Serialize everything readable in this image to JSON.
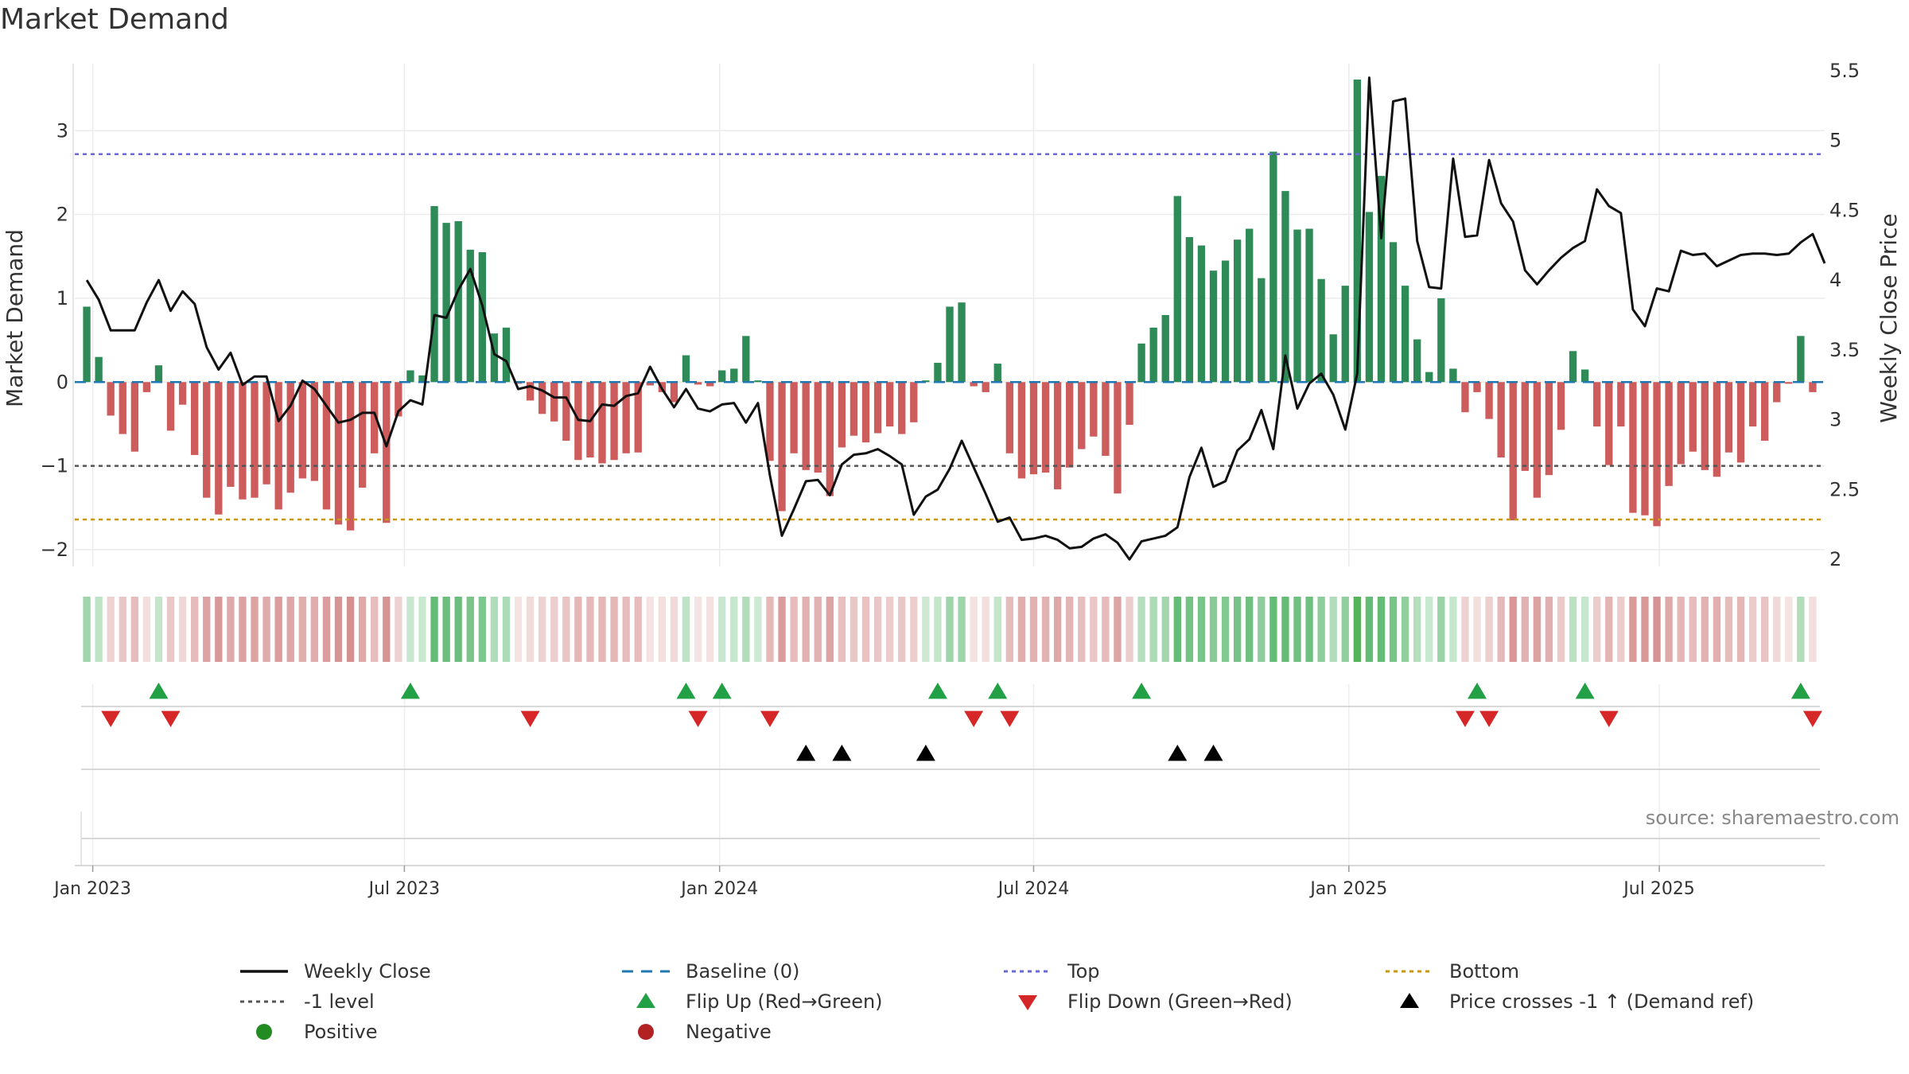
{
  "chart_data": {
    "type": "bar+line",
    "title": "Market Demand",
    "source": "source: sharemaestro.com",
    "ylabel_left": "Market Demand",
    "ylabel_right": "Weekly Close Price",
    "ylim_left": [
      -2.2,
      3.8
    ],
    "ylim_right": [
      1.95,
      5.55
    ],
    "yticks_left": [
      -2,
      -1,
      0,
      1,
      2,
      3
    ],
    "yticks_left_labels": [
      "−2",
      "−1",
      "0",
      "1",
      "2",
      "3"
    ],
    "yticks_right": [
      2,
      2.5,
      3,
      3.5,
      4,
      4.5,
      5,
      5.5
    ],
    "yticks_right_labels": [
      "2",
      "2.5",
      "3",
      "3.5",
      "4",
      "4.5",
      "5",
      "5.5"
    ],
    "xticks": [
      {
        "week": 0.5,
        "label": "Jan 2023"
      },
      {
        "week": 26.5,
        "label": "Jul 2023"
      },
      {
        "week": 52.8,
        "label": "Jan 2024"
      },
      {
        "week": 79,
        "label": "Jul 2024"
      },
      {
        "week": 105.3,
        "label": "Jan 2025"
      },
      {
        "week": 131.2,
        "label": "Jul 2025"
      }
    ],
    "x_week_range": [
      -1,
      145
    ],
    "reference_levels": {
      "top": 2.72,
      "minus1": -1.0,
      "bottom": -1.64
    },
    "colors": {
      "positive": "#2e8b57",
      "negative": "#cd5c5c",
      "price": "#111111",
      "baseline": "#1f77b4",
      "top": "#6a6ad0",
      "minus1": "#555555",
      "bottom": "#c8951e",
      "flip_up": "#22a045",
      "flip_down": "#d62728",
      "cross": "#000000",
      "legend_pos": "#228b22",
      "legend_neg": "#b22222"
    },
    "demand": [
      0.9,
      0.3,
      -0.4,
      -0.62,
      -0.83,
      -0.12,
      0.2,
      -0.58,
      -0.27,
      -0.87,
      -1.38,
      -1.58,
      -1.25,
      -1.4,
      -1.38,
      -1.22,
      -1.52,
      -1.32,
      -1.15,
      -1.18,
      -1.52,
      -1.7,
      -1.77,
      -1.26,
      -0.85,
      -1.68,
      -0.41,
      0.14,
      0.08,
      2.1,
      1.9,
      1.92,
      1.58,
      1.55,
      0.58,
      0.65,
      -0.02,
      -0.22,
      -0.38,
      -0.47,
      -0.7,
      -0.93,
      -0.9,
      -0.97,
      -0.93,
      -0.85,
      -0.84,
      -0.04,
      -0.12,
      -0.24,
      0.32,
      -0.03,
      -0.05,
      0.14,
      0.16,
      0.55,
      0.02,
      -0.94,
      -1.54,
      -0.85,
      -1.05,
      -1.08,
      -1.36,
      -0.78,
      -0.64,
      -0.72,
      -0.61,
      -0.53,
      -0.62,
      -0.48,
      0.02,
      0.23,
      0.9,
      0.95,
      -0.05,
      -0.12,
      0.22,
      -0.85,
      -1.15,
      -1.1,
      -1.08,
      -1.28,
      -1.02,
      -0.8,
      -0.65,
      -0.88,
      -1.33,
      -0.51,
      0.46,
      0.65,
      0.8,
      2.22,
      1.73,
      1.63,
      1.33,
      1.45,
      1.7,
      1.83,
      1.24,
      2.75,
      2.28,
      1.82,
      1.83,
      1.23,
      0.57,
      1.15,
      3.61,
      2.03,
      2.46,
      1.67,
      1.15,
      0.51,
      0.12,
      1.0,
      0.16,
      -0.36,
      -0.12,
      -0.44,
      -0.9,
      -1.65,
      -1.06,
      -1.38,
      -1.11,
      -0.57,
      0.37,
      0.15,
      -0.53,
      -0.99,
      -0.53,
      -1.56,
      -1.59,
      -1.72,
      -1.24,
      -0.98,
      -0.83,
      -1.05,
      -1.13,
      -0.84,
      -0.96,
      -0.53,
      -0.7,
      -0.24,
      -0.02,
      0.55,
      -0.12
    ],
    "price": [
      4.0,
      3.86,
      3.64,
      3.64,
      3.64,
      3.84,
      4.0,
      3.78,
      3.92,
      3.83,
      3.52,
      3.36,
      3.48,
      3.25,
      3.31,
      3.31,
      2.99,
      3.1,
      3.28,
      3.22,
      3.1,
      2.98,
      3.0,
      3.05,
      3.05,
      2.81,
      3.06,
      3.14,
      3.11,
      3.75,
      3.73,
      3.93,
      4.08,
      3.82,
      3.47,
      3.42,
      3.22,
      3.24,
      3.21,
      3.16,
      3.16,
      3.0,
      2.99,
      3.11,
      3.1,
      3.17,
      3.19,
      3.38,
      3.22,
      3.09,
      3.22,
      3.08,
      3.06,
      3.11,
      3.12,
      2.98,
      3.12,
      2.6,
      2.17,
      2.36,
      2.56,
      2.57,
      2.46,
      2.68,
      2.75,
      2.76,
      2.79,
      2.74,
      2.68,
      2.32,
      2.45,
      2.5,
      2.65,
      2.85,
      2.66,
      2.47,
      2.27,
      2.3,
      2.14,
      2.15,
      2.17,
      2.14,
      2.08,
      2.09,
      2.15,
      2.18,
      2.12,
      2.0,
      2.13,
      2.15,
      2.17,
      2.23,
      2.59,
      2.8,
      2.52,
      2.56,
      2.78,
      2.86,
      3.07,
      2.79,
      3.46,
      3.08,
      3.26,
      3.33,
      3.18,
      2.93,
      3.33,
      5.45,
      4.3,
      5.28,
      5.3,
      4.28,
      3.95,
      3.94,
      4.87,
      4.31,
      4.32,
      4.86,
      4.55,
      4.42,
      4.07,
      3.97,
      4.07,
      4.16,
      4.23,
      4.28,
      4.65,
      4.53,
      4.48,
      3.79,
      3.67,
      3.94,
      3.92,
      4.21,
      4.18,
      4.19,
      4.1,
      4.14,
      4.18,
      4.19,
      4.19,
      4.18,
      4.19,
      4.27,
      4.33,
      4.12
    ],
    "flip_up_weeks": [
      6,
      27,
      50,
      53,
      71,
      76,
      88,
      116,
      125,
      143
    ],
    "flip_down_weeks": [
      2,
      7,
      37,
      51,
      57,
      74,
      77,
      115,
      117,
      127,
      144
    ],
    "cross_weeks": [
      60,
      63,
      70,
      91,
      94
    ],
    "legend": [
      {
        "key": "close",
        "label": "Weekly Close"
      },
      {
        "key": "baseline",
        "label": "Baseline (0)"
      },
      {
        "key": "top",
        "label": "Top"
      },
      {
        "key": "bottom",
        "label": "Bottom"
      },
      {
        "key": "minus1",
        "label": "-1 level"
      },
      {
        "key": "flipup",
        "label": "Flip Up (Red→Green)"
      },
      {
        "key": "flipdown",
        "label": "Flip Down (Green→Red)"
      },
      {
        "key": "cross",
        "label": "Price crosses -1 ↑ (Demand ref)"
      },
      {
        "key": "positive",
        "label": "Positive"
      },
      {
        "key": "negative",
        "label": "Negative"
      }
    ]
  }
}
